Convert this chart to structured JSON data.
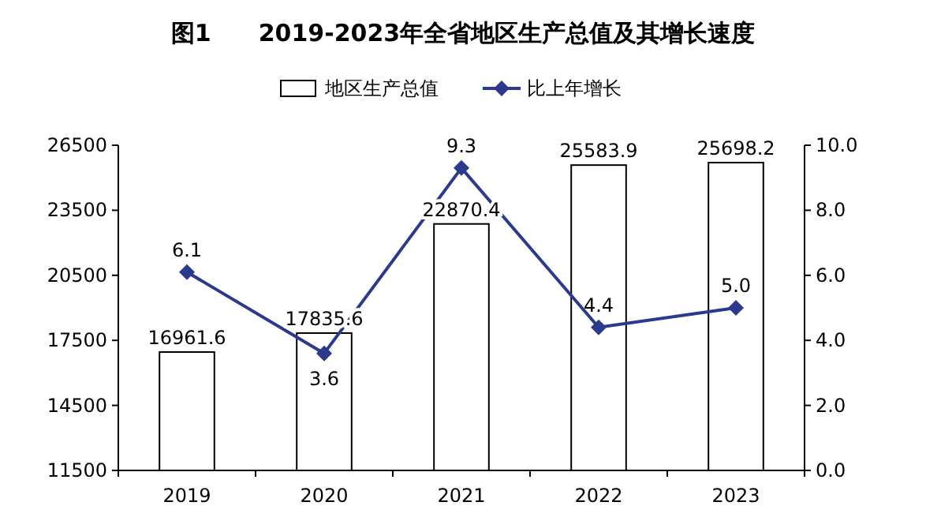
{
  "chart_data": {
    "type": "bar",
    "title": "图1　　2019-2023年全省地区生产总值及其增长速度",
    "categories": [
      "2019",
      "2020",
      "2021",
      "2022",
      "2023"
    ],
    "series": [
      {
        "name": "地区生产总值",
        "color": "#ffffff",
        "values": [
          16961.6,
          17835.6,
          22870.4,
          25583.9,
          25698.2
        ],
        "value_labels": [
          "16961.6",
          "17835.6",
          "22870.4",
          "25583.9",
          "25698.2"
        ]
      },
      {
        "name": "比上年增长",
        "type": "line",
        "axis": "y2",
        "color": "#2b3a8c",
        "marker": "diamond",
        "values": [
          6.1,
          3.6,
          9.3,
          4.4,
          5.0
        ],
        "value_labels": [
          "6.1",
          "3.6",
          "9.3",
          "4.4",
          "5.0"
        ]
      }
    ],
    "ylim": [
      11500,
      26500
    ],
    "yticks": [
      11500,
      14500,
      17500,
      20500,
      23500,
      26500
    ],
    "y2lim": [
      0,
      10
    ],
    "y2ticks": [
      {
        "value": 0,
        "label": "0.0"
      },
      {
        "value": 2,
        "label": "2.0"
      },
      {
        "value": 4,
        "label": "4.0"
      },
      {
        "value": 6,
        "label": "6.0"
      },
      {
        "value": 8,
        "label": "8.0"
      },
      {
        "value": 10,
        "label": "10.0"
      }
    ],
    "legend": "top",
    "grid": false
  }
}
